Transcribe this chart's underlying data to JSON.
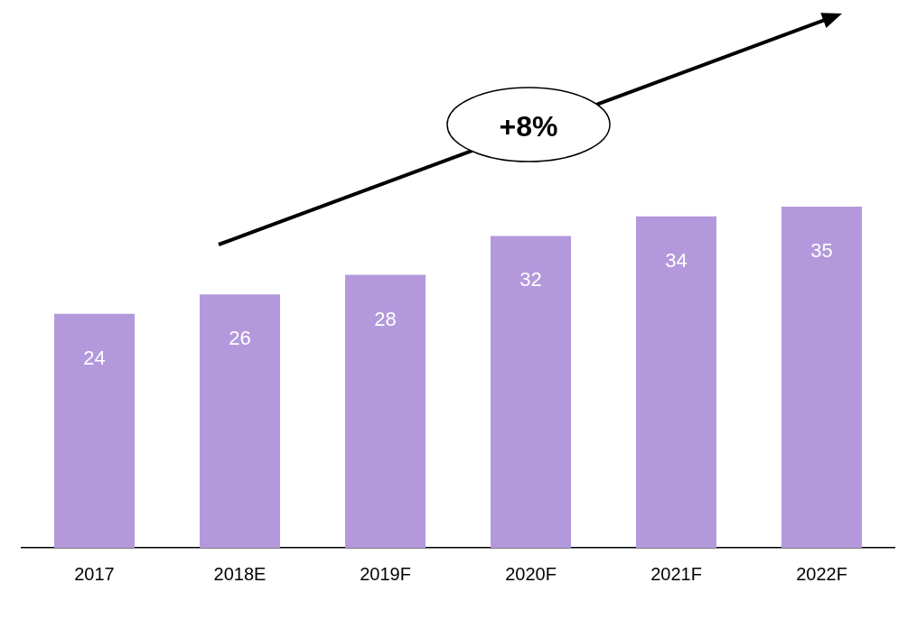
{
  "chart_data": {
    "type": "bar",
    "categories": [
      "2017",
      "2018E",
      "2019F",
      "2020F",
      "2021F",
      "2022F"
    ],
    "values": [
      24,
      26,
      28,
      32,
      34,
      35
    ],
    "color": "#b399dc",
    "data_labels": true,
    "grid": false,
    "legend": false,
    "annotations": [
      "+8%"
    ]
  }
}
